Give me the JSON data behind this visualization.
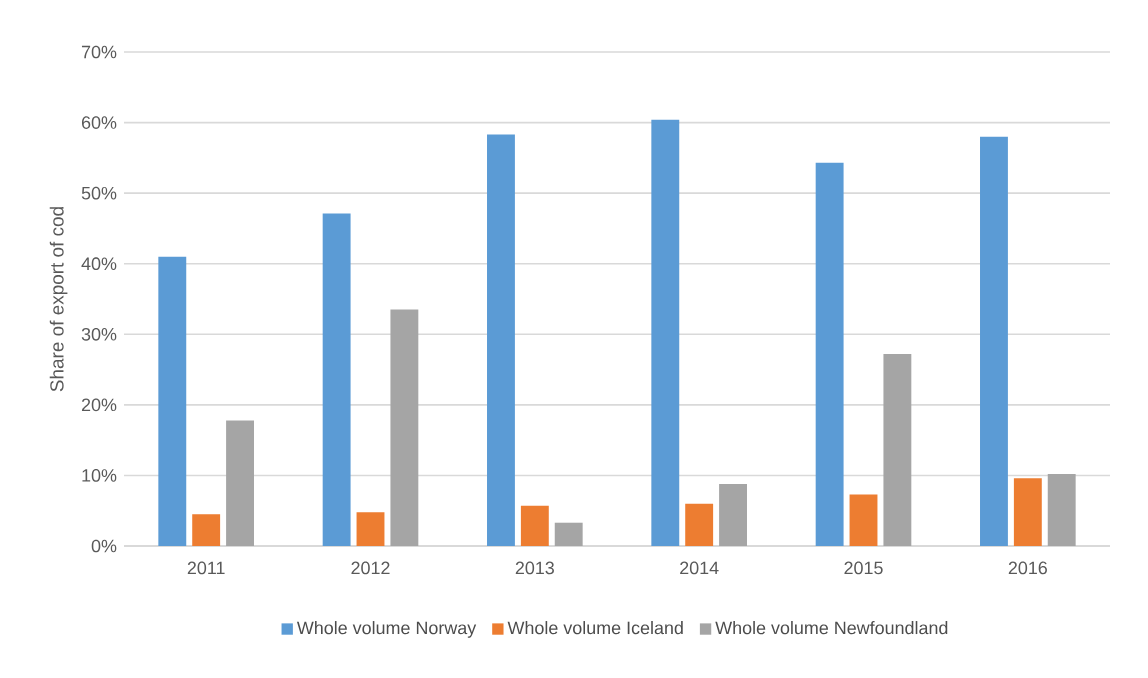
{
  "chart_data": {
    "type": "bar",
    "ylabel": "Share of export of cod",
    "categories": [
      "2011",
      "2012",
      "2013",
      "2014",
      "2015",
      "2016"
    ],
    "series": [
      {
        "name": "Whole volume Norway",
        "color": "#5b9bd5",
        "values": [
          41,
          47.1,
          58.3,
          60.4,
          54.3,
          58.0
        ]
      },
      {
        "name": "Whole volume Iceland",
        "color": "#ed7d31",
        "values": [
          4.5,
          4.8,
          5.7,
          6.0,
          7.3,
          9.6
        ]
      },
      {
        "name": "Whole volume Newfoundland",
        "color": "#a5a5a5",
        "values": [
          17.8,
          33.5,
          3.3,
          8.8,
          27.2,
          10.2
        ]
      }
    ],
    "ylim": [
      0,
      70
    ],
    "yticks": [
      {
        "value": 0,
        "label": "0%"
      },
      {
        "value": 10,
        "label": "10%"
      },
      {
        "value": 20,
        "label": "20%"
      },
      {
        "value": 30,
        "label": "30%"
      },
      {
        "value": 40,
        "label": "40%"
      },
      {
        "value": 50,
        "label": "50%"
      },
      {
        "value": 60,
        "label": "60%"
      },
      {
        "value": 70,
        "label": "70%"
      }
    ],
    "grid": "y",
    "legend": "bottom"
  }
}
